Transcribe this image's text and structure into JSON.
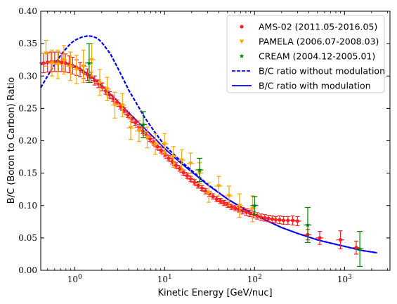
{
  "chart_data": {
    "type": "scatter",
    "title": "",
    "xlabel": "Kinetic Energy [GeV/nuc]",
    "ylabel": "B/C (Boron to Carbon) Ratio",
    "xscale": "log",
    "xlim": [
      0.42,
      3200
    ],
    "ylim": [
      0.0,
      0.4
    ],
    "x_ticks": [
      1,
      10,
      100,
      1000
    ],
    "x_tick_labels": [
      "10^0",
      "10^1",
      "10^2",
      "10^3"
    ],
    "y_ticks": [
      0.0,
      0.05,
      0.1,
      0.15,
      0.2,
      0.25,
      0.3,
      0.35,
      0.4
    ],
    "y_tick_labels": [
      "0.00",
      "0.05",
      "0.10",
      "0.15",
      "0.20",
      "0.25",
      "0.30",
      "0.35",
      "0.40"
    ],
    "legend_position": "top-right",
    "grid": false,
    "series": [
      {
        "name": "AMS-02 (2011.05-2016.05)",
        "kind": "points",
        "marker": "circle",
        "color": "#ff2020",
        "points": [
          {
            "x": 0.45,
            "y": 0.32,
            "e": 0.015
          },
          {
            "x": 0.5,
            "y": 0.321,
            "e": 0.015
          },
          {
            "x": 0.55,
            "y": 0.322,
            "e": 0.015
          },
          {
            "x": 0.6,
            "y": 0.322,
            "e": 0.015
          },
          {
            "x": 0.66,
            "y": 0.322,
            "e": 0.015
          },
          {
            "x": 0.72,
            "y": 0.321,
            "e": 0.014
          },
          {
            "x": 0.79,
            "y": 0.32,
            "e": 0.014
          },
          {
            "x": 0.87,
            "y": 0.318,
            "e": 0.013
          },
          {
            "x": 0.95,
            "y": 0.316,
            "e": 0.013
          },
          {
            "x": 1.05,
            "y": 0.313,
            "e": 0.012
          },
          {
            "x": 1.15,
            "y": 0.31,
            "e": 0.011
          },
          {
            "x": 1.26,
            "y": 0.306,
            "e": 0.01
          },
          {
            "x": 1.39,
            "y": 0.302,
            "e": 0.009
          },
          {
            "x": 1.52,
            "y": 0.298,
            "e": 0.008
          },
          {
            "x": 1.67,
            "y": 0.293,
            "e": 0.007
          },
          {
            "x": 1.84,
            "y": 0.288,
            "e": 0.006
          },
          {
            "x": 2.02,
            "y": 0.283,
            "e": 0.006
          },
          {
            "x": 2.22,
            "y": 0.277,
            "e": 0.005
          },
          {
            "x": 2.44,
            "y": 0.271,
            "e": 0.005
          },
          {
            "x": 2.68,
            "y": 0.265,
            "e": 0.004
          },
          {
            "x": 2.95,
            "y": 0.259,
            "e": 0.004
          },
          {
            "x": 3.24,
            "y": 0.253,
            "e": 0.004
          },
          {
            "x": 3.56,
            "y": 0.247,
            "e": 0.004
          },
          {
            "x": 3.91,
            "y": 0.24,
            "e": 0.004
          },
          {
            "x": 4.3,
            "y": 0.234,
            "e": 0.004
          },
          {
            "x": 4.73,
            "y": 0.228,
            "e": 0.004
          },
          {
            "x": 5.2,
            "y": 0.221,
            "e": 0.004
          },
          {
            "x": 5.71,
            "y": 0.215,
            "e": 0.004
          },
          {
            "x": 6.28,
            "y": 0.209,
            "e": 0.004
          },
          {
            "x": 6.9,
            "y": 0.203,
            "e": 0.004
          },
          {
            "x": 7.58,
            "y": 0.197,
            "e": 0.004
          },
          {
            "x": 8.33,
            "y": 0.191,
            "e": 0.004
          },
          {
            "x": 9.16,
            "y": 0.185,
            "e": 0.004
          },
          {
            "x": 10.1,
            "y": 0.179,
            "e": 0.004
          },
          {
            "x": 11.1,
            "y": 0.173,
            "e": 0.004
          },
          {
            "x": 12.2,
            "y": 0.168,
            "e": 0.004
          },
          {
            "x": 13.4,
            "y": 0.162,
            "e": 0.004
          },
          {
            "x": 14.7,
            "y": 0.157,
            "e": 0.004
          },
          {
            "x": 16.2,
            "y": 0.151,
            "e": 0.004
          },
          {
            "x": 17.8,
            "y": 0.146,
            "e": 0.004
          },
          {
            "x": 19.5,
            "y": 0.141,
            "e": 0.004
          },
          {
            "x": 21.5,
            "y": 0.136,
            "e": 0.004
          },
          {
            "x": 23.6,
            "y": 0.131,
            "e": 0.004
          },
          {
            "x": 26.0,
            "y": 0.127,
            "e": 0.004
          },
          {
            "x": 28.5,
            "y": 0.122,
            "e": 0.004
          },
          {
            "x": 31.4,
            "y": 0.118,
            "e": 0.004
          },
          {
            "x": 34.5,
            "y": 0.114,
            "e": 0.004
          },
          {
            "x": 37.9,
            "y": 0.11,
            "e": 0.004
          },
          {
            "x": 41.7,
            "y": 0.107,
            "e": 0.004
          },
          {
            "x": 45.8,
            "y": 0.104,
            "e": 0.004
          },
          {
            "x": 50.4,
            "y": 0.101,
            "e": 0.004
          },
          {
            "x": 55.4,
            "y": 0.098,
            "e": 0.004
          },
          {
            "x": 60.9,
            "y": 0.096,
            "e": 0.004
          },
          {
            "x": 66.9,
            "y": 0.094,
            "e": 0.004
          },
          {
            "x": 73.6,
            "y": 0.092,
            "e": 0.005
          },
          {
            "x": 80.9,
            "y": 0.09,
            "e": 0.005
          },
          {
            "x": 88.9,
            "y": 0.088,
            "e": 0.005
          },
          {
            "x": 97.7,
            "y": 0.086,
            "e": 0.005
          },
          {
            "x": 107,
            "y": 0.084,
            "e": 0.005
          },
          {
            "x": 118,
            "y": 0.082,
            "e": 0.005
          },
          {
            "x": 130,
            "y": 0.081,
            "e": 0.005
          },
          {
            "x": 143,
            "y": 0.08,
            "e": 0.005
          },
          {
            "x": 157,
            "y": 0.079,
            "e": 0.005
          },
          {
            "x": 172,
            "y": 0.078,
            "e": 0.005
          },
          {
            "x": 190,
            "y": 0.078,
            "e": 0.006
          },
          {
            "x": 210,
            "y": 0.077,
            "e": 0.006
          },
          {
            "x": 235,
            "y": 0.077,
            "e": 0.006
          },
          {
            "x": 265,
            "y": 0.077,
            "e": 0.007
          },
          {
            "x": 300,
            "y": 0.076,
            "e": 0.007
          },
          {
            "x": 390,
            "y": 0.055,
            "e": 0.008
          },
          {
            "x": 530,
            "y": 0.05,
            "e": 0.01
          },
          {
            "x": 900,
            "y": 0.047,
            "e": 0.014
          },
          {
            "x": 1350,
            "y": 0.035,
            "e": 0.01
          }
        ]
      },
      {
        "name": "PAMELA (2006.07-2008.03)",
        "kind": "points",
        "marker": "triangle-down",
        "color": "#ffa500",
        "points": [
          {
            "x": 0.48,
            "y": 0.335,
            "e": 0.02
          },
          {
            "x": 0.56,
            "y": 0.32,
            "e": 0.02
          },
          {
            "x": 0.65,
            "y": 0.318,
            "e": 0.022
          },
          {
            "x": 0.76,
            "y": 0.325,
            "e": 0.022
          },
          {
            "x": 0.9,
            "y": 0.315,
            "e": 0.022
          },
          {
            "x": 1.05,
            "y": 0.31,
            "e": 0.022
          },
          {
            "x": 1.25,
            "y": 0.315,
            "e": 0.025
          },
          {
            "x": 1.55,
            "y": 0.325,
            "e": 0.025
          },
          {
            "x": 1.9,
            "y": 0.29,
            "e": 0.02
          },
          {
            "x": 2.3,
            "y": 0.28,
            "e": 0.018
          },
          {
            "x": 2.8,
            "y": 0.255,
            "e": 0.02
          },
          {
            "x": 3.4,
            "y": 0.255,
            "e": 0.018
          },
          {
            "x": 4.2,
            "y": 0.22,
            "e": 0.018
          },
          {
            "x": 5.2,
            "y": 0.215,
            "e": 0.016
          },
          {
            "x": 6.4,
            "y": 0.205,
            "e": 0.016
          },
          {
            "x": 7.9,
            "y": 0.195,
            "e": 0.016
          },
          {
            "x": 10.0,
            "y": 0.195,
            "e": 0.016
          },
          {
            "x": 12.5,
            "y": 0.175,
            "e": 0.016
          },
          {
            "x": 15.5,
            "y": 0.17,
            "e": 0.016
          },
          {
            "x": 19.5,
            "y": 0.165,
            "e": 0.016
          },
          {
            "x": 24.5,
            "y": 0.15,
            "e": 0.016
          },
          {
            "x": 31.0,
            "y": 0.12,
            "e": 0.015
          },
          {
            "x": 40.0,
            "y": 0.13,
            "e": 0.015
          },
          {
            "x": 52.0,
            "y": 0.115,
            "e": 0.015
          },
          {
            "x": 68.0,
            "y": 0.1,
            "e": 0.018
          },
          {
            "x": 95.0,
            "y": 0.095,
            "e": 0.02
          }
        ]
      },
      {
        "name": "CREAM (2004.12-2005.01)",
        "kind": "points",
        "marker": "star",
        "color": "#008000",
        "points": [
          {
            "x": 1.45,
            "y": 0.32,
            "e": 0.03
          },
          {
            "x": 5.8,
            "y": 0.225,
            "e": 0.02
          },
          {
            "x": 24.5,
            "y": 0.155,
            "e": 0.018
          },
          {
            "x": 100,
            "y": 0.1,
            "e": 0.014
          },
          {
            "x": 390,
            "y": 0.07,
            "e": 0.027
          },
          {
            "x": 1480,
            "y": 0.033,
            "e": 0.027
          }
        ]
      },
      {
        "name": "B/C ratio without modulation",
        "kind": "line",
        "style": "dashed",
        "color": "#0000ff",
        "points": [
          {
            "x": 0.42,
            "y": 0.282
          },
          {
            "x": 0.5,
            "y": 0.3
          },
          {
            "x": 0.6,
            "y": 0.318
          },
          {
            "x": 0.7,
            "y": 0.332
          },
          {
            "x": 0.8,
            "y": 0.342
          },
          {
            "x": 0.9,
            "y": 0.35
          },
          {
            "x": 1.0,
            "y": 0.355
          },
          {
            "x": 1.2,
            "y": 0.36
          },
          {
            "x": 1.4,
            "y": 0.362
          },
          {
            "x": 1.6,
            "y": 0.361
          },
          {
            "x": 1.8,
            "y": 0.358
          },
          {
            "x": 2.0,
            "y": 0.352
          },
          {
            "x": 2.5,
            "y": 0.334
          },
          {
            "x": 3.0,
            "y": 0.313
          },
          {
            "x": 4.0,
            "y": 0.278
          },
          {
            "x": 5.0,
            "y": 0.255
          },
          {
            "x": 6.0,
            "y": 0.236
          },
          {
            "x": 8.0,
            "y": 0.211
          },
          {
            "x": 10,
            "y": 0.193
          },
          {
            "x": 15,
            "y": 0.169
          },
          {
            "x": 20,
            "y": 0.154
          },
          {
            "x": 30,
            "y": 0.133
          },
          {
            "x": 50,
            "y": 0.11
          },
          {
            "x": 70,
            "y": 0.098
          },
          {
            "x": 100,
            "y": 0.086
          },
          {
            "x": 150,
            "y": 0.074
          },
          {
            "x": 200,
            "y": 0.066
          },
          {
            "x": 300,
            "y": 0.057
          },
          {
            "x": 500,
            "y": 0.047
          },
          {
            "x": 700,
            "y": 0.042
          },
          {
            "x": 1000,
            "y": 0.037
          },
          {
            "x": 1500,
            "y": 0.031
          },
          {
            "x": 2300,
            "y": 0.027
          }
        ]
      },
      {
        "name": "B/C ratio with modulation",
        "kind": "line",
        "style": "solid",
        "color": "#0000ff",
        "points": [
          {
            "x": 0.42,
            "y": 0.318
          },
          {
            "x": 0.5,
            "y": 0.32
          },
          {
            "x": 0.6,
            "y": 0.321
          },
          {
            "x": 0.7,
            "y": 0.321
          },
          {
            "x": 0.8,
            "y": 0.32
          },
          {
            "x": 0.9,
            "y": 0.318
          },
          {
            "x": 1.0,
            "y": 0.315
          },
          {
            "x": 1.2,
            "y": 0.309
          },
          {
            "x": 1.5,
            "y": 0.3
          },
          {
            "x": 2.0,
            "y": 0.285
          },
          {
            "x": 2.5,
            "y": 0.272
          },
          {
            "x": 3.0,
            "y": 0.261
          },
          {
            "x": 4.0,
            "y": 0.243
          },
          {
            "x": 5.0,
            "y": 0.23
          },
          {
            "x": 6.0,
            "y": 0.219
          },
          {
            "x": 8.0,
            "y": 0.202
          },
          {
            "x": 10,
            "y": 0.188
          },
          {
            "x": 15,
            "y": 0.166
          },
          {
            "x": 20,
            "y": 0.152
          },
          {
            "x": 30,
            "y": 0.132
          },
          {
            "x": 50,
            "y": 0.11
          },
          {
            "x": 70,
            "y": 0.098
          },
          {
            "x": 100,
            "y": 0.086
          },
          {
            "x": 150,
            "y": 0.074
          },
          {
            "x": 200,
            "y": 0.066
          },
          {
            "x": 300,
            "y": 0.057
          },
          {
            "x": 500,
            "y": 0.047
          },
          {
            "x": 700,
            "y": 0.042
          },
          {
            "x": 1000,
            "y": 0.037
          },
          {
            "x": 1500,
            "y": 0.031
          },
          {
            "x": 2300,
            "y": 0.027
          }
        ]
      }
    ]
  }
}
